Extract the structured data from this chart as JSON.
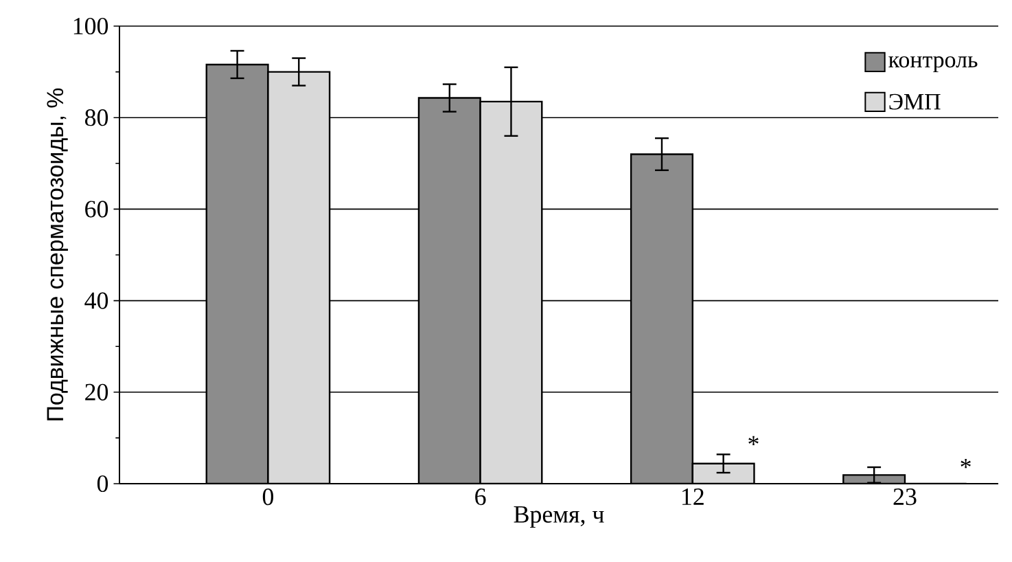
{
  "chart_data": {
    "type": "bar",
    "xlabel": "Время, ч",
    "ylabel": "Подвижные сперматозоиды, %",
    "categories": [
      "0",
      "6",
      "12",
      "23"
    ],
    "series": [
      {
        "name": "контроль",
        "color": "#8c8c8c",
        "values": [
          91.6,
          84.3,
          72,
          1.9
        ],
        "errors": [
          3,
          3,
          3.5,
          1.7
        ]
      },
      {
        "name": "ЭМП",
        "color": "#d9d9d9",
        "values": [
          90,
          83.5,
          4.4,
          0
        ],
        "errors": [
          3,
          7.5,
          2,
          null
        ]
      }
    ],
    "ylim": [
      0,
      100
    ],
    "yticks": [
      0,
      20,
      40,
      60,
      80,
      100
    ],
    "grid": "y",
    "legend": "top right",
    "annotations": [
      {
        "text": "*",
        "x": "12",
        "y": 6.5
      },
      {
        "text": "*",
        "x": "23",
        "y": 1.5
      }
    ]
  }
}
